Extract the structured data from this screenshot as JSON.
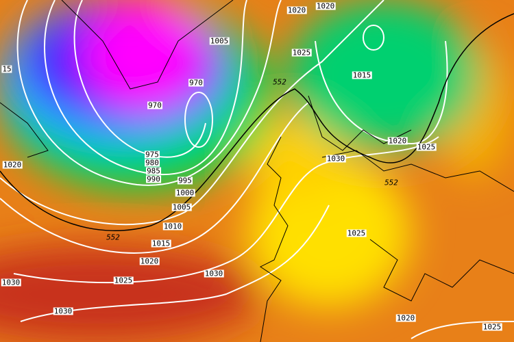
{
  "map": {
    "type": "pressure and 500hPa geopotential chart",
    "colors": {
      "low_center": "#ff00ff",
      "low": "#6a00ff",
      "mid_low": "#00c8ff",
      "green": "#00dc3c",
      "yellow": "#ffee00",
      "orange": "#f0a000",
      "dark_orange": "#e06a10",
      "red": "#c02818",
      "isobar": "#ffffff",
      "coastline": "#000000"
    },
    "isobar_labels": [
      "1020",
      "1020",
      "1005",
      "1025",
      "15",
      "970",
      "1015",
      "970",
      "1020",
      "1025",
      "1030",
      "975",
      "980",
      "985",
      "990",
      "995",
      "1020",
      "1000",
      "1005",
      "1010",
      "1015",
      "1025",
      "1020",
      "1030",
      "1025",
      "1030",
      "1030",
      "1020",
      "1025"
    ],
    "height_labels": [
      "552",
      "552",
      "552"
    ]
  }
}
